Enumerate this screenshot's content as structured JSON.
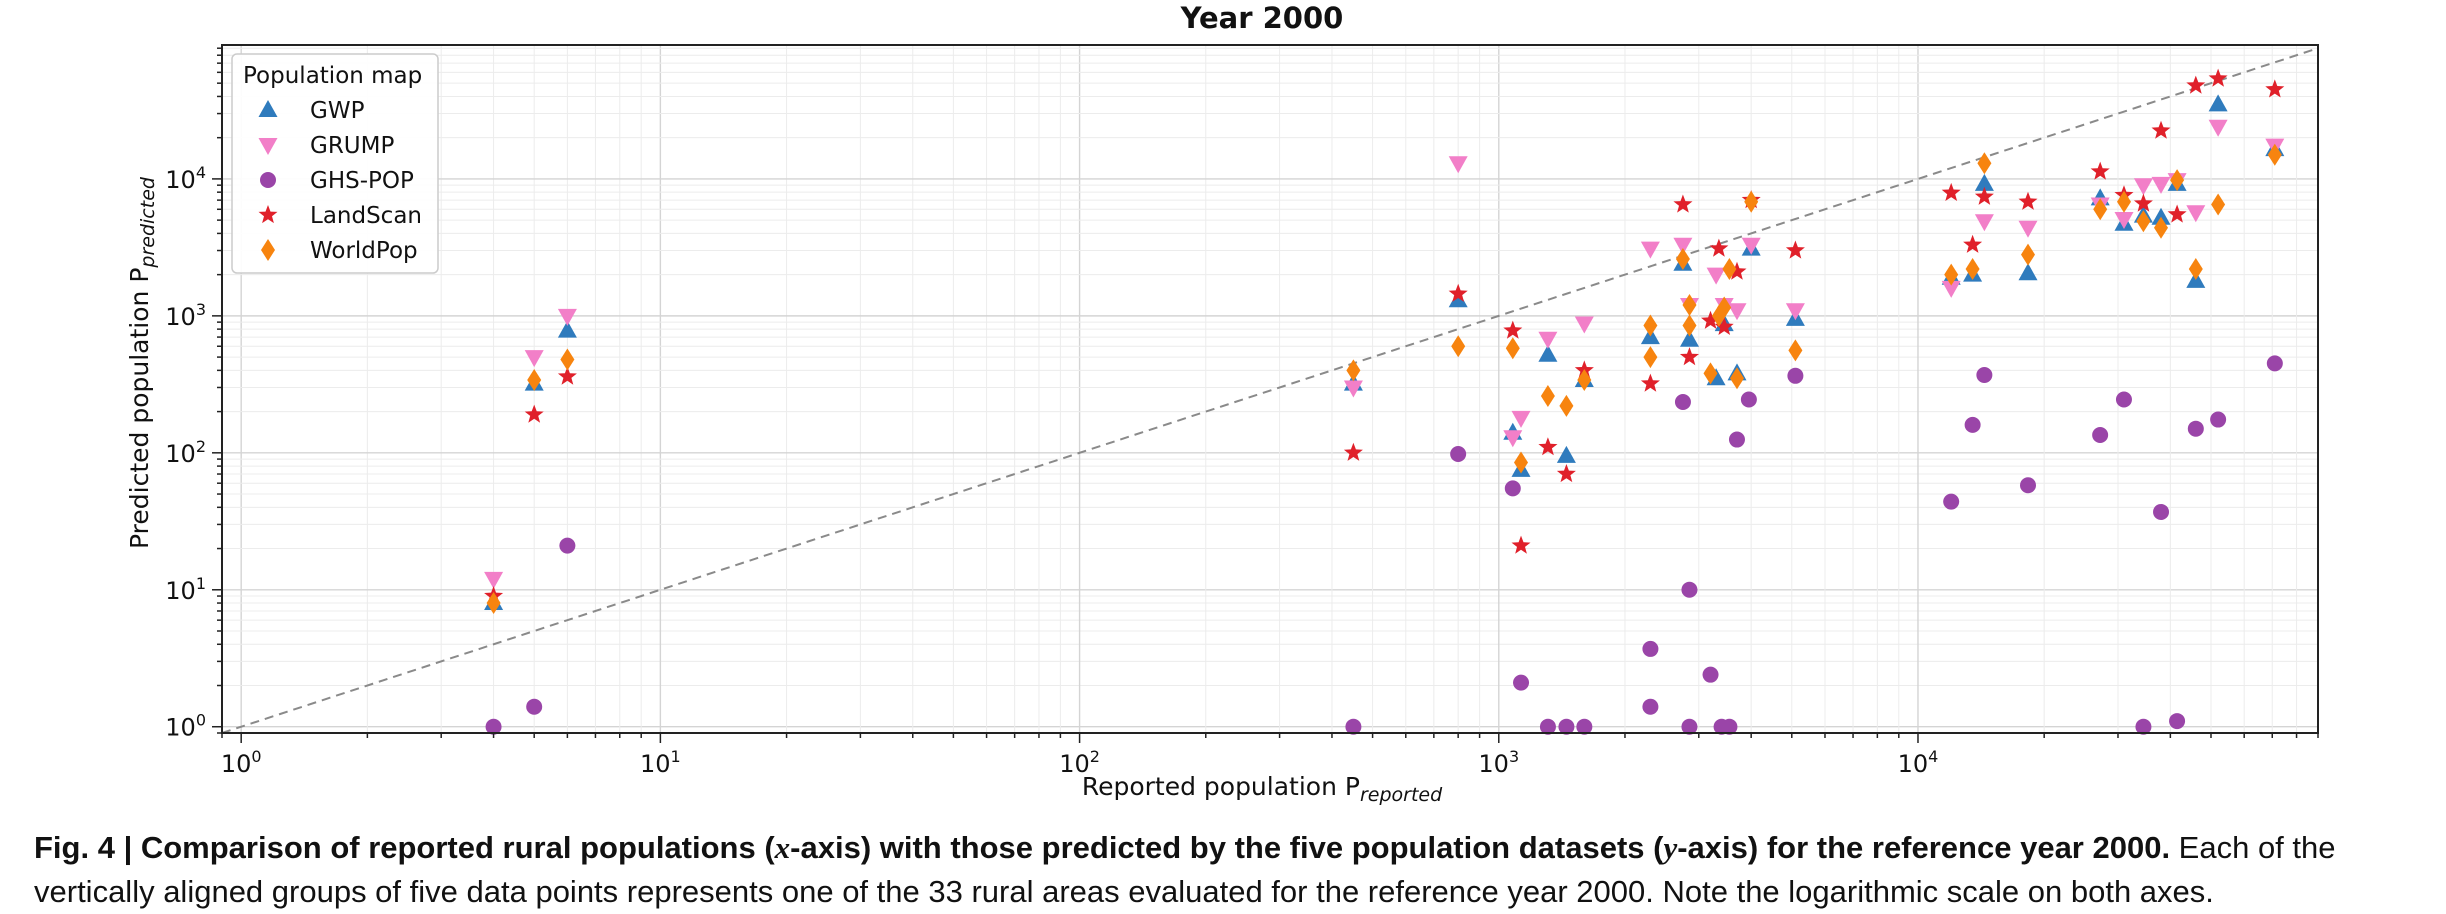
{
  "chart_data": {
    "type": "scatter",
    "title": "Year 2000",
    "xlabel": "Reported population P",
    "xlabel_sub": "reported",
    "ylabel": "Predicted population P",
    "ylabel_sub": "predicted",
    "xscale": "log",
    "yscale": "log",
    "xlim": [
      0.9,
      90000
    ],
    "ylim": [
      0.9,
      95000
    ],
    "grid": true,
    "reference_line": "y = x",
    "legend": {
      "title": "Population map",
      "position": "top-left"
    },
    "x_ticks": [
      {
        "value": 1,
        "base": "10",
        "exp": "0"
      },
      {
        "value": 10,
        "base": "10",
        "exp": "1"
      },
      {
        "value": 100,
        "base": "10",
        "exp": "2"
      },
      {
        "value": 1000,
        "base": "10",
        "exp": "3"
      },
      {
        "value": 10000,
        "base": "10",
        "exp": "4"
      }
    ],
    "y_ticks": [
      {
        "value": 1,
        "base": "10",
        "exp": "0"
      },
      {
        "value": 10,
        "base": "10",
        "exp": "1"
      },
      {
        "value": 100,
        "base": "10",
        "exp": "2"
      },
      {
        "value": 1000,
        "base": "10",
        "exp": "3"
      },
      {
        "value": 10000,
        "base": "10",
        "exp": "4"
      }
    ],
    "series": [
      {
        "name": "GWP",
        "marker": "triangle-up",
        "color": "#2f7bbd",
        "points": [
          [
            4,
            8
          ],
          [
            5,
            320
          ],
          [
            6,
            780
          ],
          [
            450,
            320
          ],
          [
            800,
            1300
          ],
          [
            1080,
            140
          ],
          [
            1130,
            75
          ],
          [
            1310,
            520
          ],
          [
            1450,
            95
          ],
          [
            1600,
            340
          ],
          [
            2300,
            700
          ],
          [
            2750,
            2400
          ],
          [
            2850,
            670
          ],
          [
            3300,
            350
          ],
          [
            3450,
            870
          ],
          [
            3700,
            380
          ],
          [
            4000,
            3100
          ],
          [
            5100,
            950
          ],
          [
            12000,
            1900
          ],
          [
            13500,
            2000
          ],
          [
            14400,
            9200
          ],
          [
            18300,
            2050
          ],
          [
            27200,
            7200
          ],
          [
            31000,
            4700
          ],
          [
            34500,
            5400
          ],
          [
            38000,
            5200
          ],
          [
            41500,
            9200
          ],
          [
            46000,
            1800
          ],
          [
            52000,
            35000
          ],
          [
            71000,
            16500
          ]
        ]
      },
      {
        "name": "GRUMP",
        "marker": "triangle-down",
        "color": "#f27fc8",
        "points": [
          [
            4,
            12
          ],
          [
            5,
            500
          ],
          [
            6,
            1000
          ],
          [
            450,
            300
          ],
          [
            800,
            13000
          ],
          [
            1080,
            130
          ],
          [
            1130,
            180
          ],
          [
            1310,
            680
          ],
          [
            1600,
            880
          ],
          [
            2300,
            3100
          ],
          [
            2750,
            3300
          ],
          [
            2850,
            1200
          ],
          [
            3300,
            2000
          ],
          [
            3450,
            1200
          ],
          [
            3700,
            1100
          ],
          [
            4000,
            3300
          ],
          [
            5100,
            1100
          ],
          [
            12000,
            1600
          ],
          [
            14400,
            4900
          ],
          [
            18300,
            4400
          ],
          [
            27200,
            6500
          ],
          [
            31000,
            5100
          ],
          [
            34500,
            9000
          ],
          [
            38000,
            9200
          ],
          [
            41500,
            9800
          ],
          [
            46000,
            5700
          ],
          [
            52000,
            24000
          ],
          [
            71000,
            17500
          ]
        ]
      },
      {
        "name": "GHS-POP",
        "marker": "circle",
        "color": "#9a45a8",
        "points": [
          [
            4,
            1
          ],
          [
            5,
            1.4
          ],
          [
            6,
            21
          ],
          [
            450,
            1
          ],
          [
            800,
            98
          ],
          [
            1080,
            55
          ],
          [
            1130,
            2.1
          ],
          [
            1310,
            1
          ],
          [
            1450,
            1
          ],
          [
            1600,
            1
          ],
          [
            2300,
            3.7
          ],
          [
            2300,
            1.4
          ],
          [
            2750,
            235
          ],
          [
            2850,
            10
          ],
          [
            2850,
            1
          ],
          [
            3200,
            2.4
          ],
          [
            3400,
            1
          ],
          [
            3550,
            1
          ],
          [
            3700,
            125
          ],
          [
            3950,
            245
          ],
          [
            5100,
            365
          ],
          [
            12000,
            44
          ],
          [
            13500,
            160
          ],
          [
            14400,
            370
          ],
          [
            18300,
            58
          ],
          [
            27200,
            135
          ],
          [
            31000,
            245
          ],
          [
            34500,
            1
          ],
          [
            38000,
            37
          ],
          [
            41500,
            1.1
          ],
          [
            46000,
            150
          ],
          [
            52000,
            175
          ],
          [
            71000,
            450
          ]
        ]
      },
      {
        "name": "LandScan",
        "marker": "star",
        "color": "#e0202a",
        "points": [
          [
            4,
            9
          ],
          [
            5,
            190
          ],
          [
            6,
            360
          ],
          [
            450,
            100
          ],
          [
            800,
            1450
          ],
          [
            1080,
            780
          ],
          [
            1130,
            21
          ],
          [
            1310,
            110
          ],
          [
            1450,
            70
          ],
          [
            1600,
            400
          ],
          [
            2300,
            320
          ],
          [
            2750,
            6500
          ],
          [
            2850,
            500
          ],
          [
            3200,
            920
          ],
          [
            3350,
            3100
          ],
          [
            3450,
            830
          ],
          [
            3700,
            2100
          ],
          [
            4000,
            7000
          ],
          [
            5100,
            3000
          ],
          [
            12000,
            7900
          ],
          [
            13500,
            3300
          ],
          [
            14400,
            7400
          ],
          [
            18300,
            6800
          ],
          [
            27200,
            11300
          ],
          [
            31000,
            7600
          ],
          [
            34500,
            6600
          ],
          [
            38000,
            22500
          ],
          [
            41500,
            5500
          ],
          [
            46000,
            48000
          ],
          [
            52000,
            54000
          ],
          [
            71000,
            45000
          ]
        ]
      },
      {
        "name": "WorldPop",
        "marker": "diamond",
        "color": "#f7840f",
        "points": [
          [
            4,
            8
          ],
          [
            5,
            340
          ],
          [
            6,
            480
          ],
          [
            450,
            400
          ],
          [
            800,
            600
          ],
          [
            1080,
            580
          ],
          [
            1130,
            85
          ],
          [
            1310,
            260
          ],
          [
            1450,
            220
          ],
          [
            1600,
            340
          ],
          [
            2300,
            850
          ],
          [
            2300,
            500
          ],
          [
            2750,
            2600
          ],
          [
            2850,
            1200
          ],
          [
            2850,
            850
          ],
          [
            3200,
            380
          ],
          [
            3350,
            1000
          ],
          [
            3450,
            1150
          ],
          [
            3550,
            2200
          ],
          [
            3700,
            350
          ],
          [
            4000,
            6800
          ],
          [
            5100,
            560
          ],
          [
            12000,
            2000
          ],
          [
            13500,
            2200
          ],
          [
            14400,
            13000
          ],
          [
            18300,
            2800
          ],
          [
            27200,
            6000
          ],
          [
            31000,
            6800
          ],
          [
            34500,
            4900
          ],
          [
            38000,
            4400
          ],
          [
            41500,
            9800
          ],
          [
            46000,
            2200
          ],
          [
            52000,
            6500
          ],
          [
            71000,
            15000
          ]
        ]
      }
    ]
  },
  "caption": {
    "prefix": "Fig. 4 | Comparison of reported rural populations (",
    "x_em": "x",
    "middle": "-axis) with those predicted by the five population datasets (",
    "y_em": "y",
    "suffix": "-axis) for the reference year 2000.",
    "body": " Each of the vertically aligned groups of five data points represents one of the 33 rural areas evaluated for the reference year 2000. Note the logarithmic scale on both axes."
  }
}
